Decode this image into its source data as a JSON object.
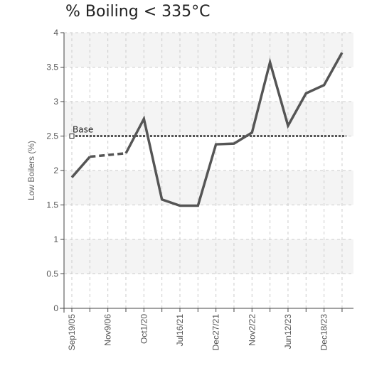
{
  "chart_data": {
    "type": "line",
    "title": "% Boiling < 335°C",
    "ylabel": "Low Boilers (%)",
    "xlabel": "",
    "ylim": [
      0,
      4
    ],
    "yticks": [
      {
        "value": 0,
        "label": "0"
      },
      {
        "value": 0.5,
        "label": "0.5"
      },
      {
        "value": 1,
        "label": "1"
      },
      {
        "value": 1.5,
        "label": "1.5"
      },
      {
        "value": 2,
        "label": "2"
      },
      {
        "value": 2.5,
        "label": "2.5"
      },
      {
        "value": 3,
        "label": "3"
      },
      {
        "value": 3.5,
        "label": "3.5"
      },
      {
        "value": 4,
        "label": "4"
      }
    ],
    "categories": [
      "Sep19/05",
      "",
      "Nov9/06",
      "",
      "Oct1/20",
      "",
      "Jul16/21",
      "",
      "Dec27/21",
      "",
      "Nov2/22",
      "",
      "Jun12/23",
      "",
      "Dec18/23",
      ""
    ],
    "series": [
      {
        "values": [
          1.9,
          2.2,
          null,
          2.25,
          2.75,
          1.58,
          1.49,
          1.49,
          2.38,
          2.39,
          2.55,
          3.57,
          2.65,
          3.12,
          3.24,
          3.71
        ],
        "color": "#555555"
      }
    ],
    "gap_bridges": [
      {
        "from_index": 1,
        "to_index": 3,
        "style": "dashed"
      }
    ],
    "reference_line": {
      "label": "Base",
      "value": 2.5,
      "style": "dotted",
      "color": "#333333"
    },
    "grid": true,
    "background_bands": true
  }
}
